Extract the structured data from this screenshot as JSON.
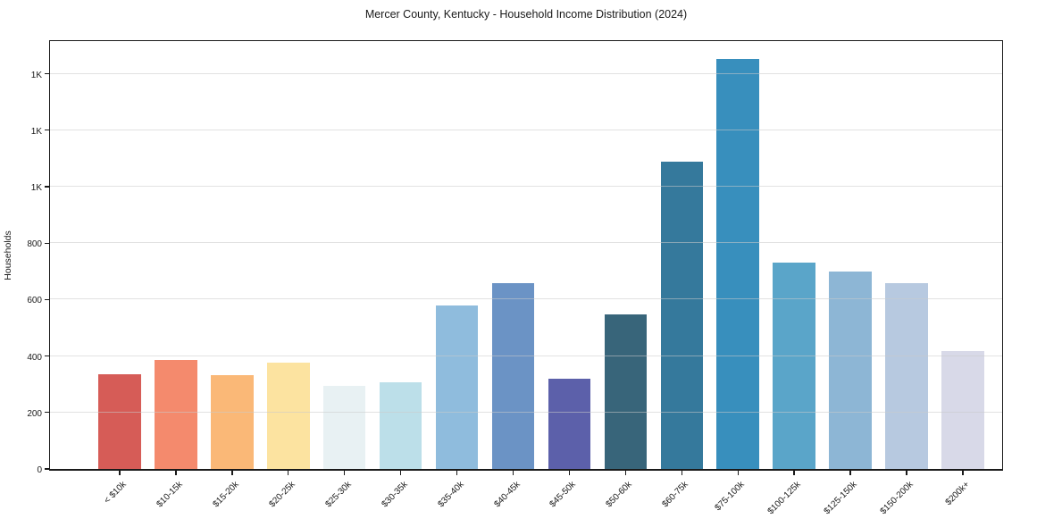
{
  "figure": {
    "title": "Mercer County, Kentucky - Household Income Distribution (2024)"
  },
  "chart_data": {
    "type": "bar",
    "title": "Mercer County, Kentucky - Household Income Distribution (2024)",
    "xlabel": "",
    "ylabel": "Households",
    "categories": [
      "< $10k",
      "$10-15k",
      "$15-20k",
      "$20-25k",
      "$25-30k",
      "$30-35k",
      "$35-40k",
      "$40-45k",
      "$45-50k",
      "$50-60k",
      "$60-75k",
      "$75-100k",
      "$100-125k",
      "$125-150k",
      "$150-200k",
      "$200k+"
    ],
    "values": [
      335,
      387,
      331,
      377,
      293,
      306,
      580,
      658,
      320,
      546,
      1087,
      1451,
      731,
      700,
      657,
      419
    ],
    "bar_colors": [
      "#d65c57",
      "#f48a6d",
      "#fab877",
      "#fce3a0",
      "#e8f1f3",
      "#bcdfe9",
      "#8fbcdd",
      "#6b93c5",
      "#5c60aa",
      "#38657a",
      "#35799c",
      "#388fbd",
      "#5aa5c9",
      "#8db6d5",
      "#b7c9e0",
      "#d8d9e8"
    ],
    "ylim": [
      0,
      1525
    ],
    "yticks": [
      {
        "value": 0,
        "label": "0"
      },
      {
        "value": 200,
        "label": "200"
      },
      {
        "value": 400,
        "label": "400"
      },
      {
        "value": 600,
        "label": "600"
      },
      {
        "value": 800,
        "label": "800"
      },
      {
        "value": 1000,
        "label": "1K"
      },
      {
        "value": 1200,
        "label": "1K"
      },
      {
        "value": 1400,
        "label": "1K"
      }
    ],
    "grid": "horizontal",
    "legend_position": "none",
    "plot_bg": "#ffffff",
    "grid_color": "#e4e4e4",
    "spine_color": "#1a1a1a"
  }
}
